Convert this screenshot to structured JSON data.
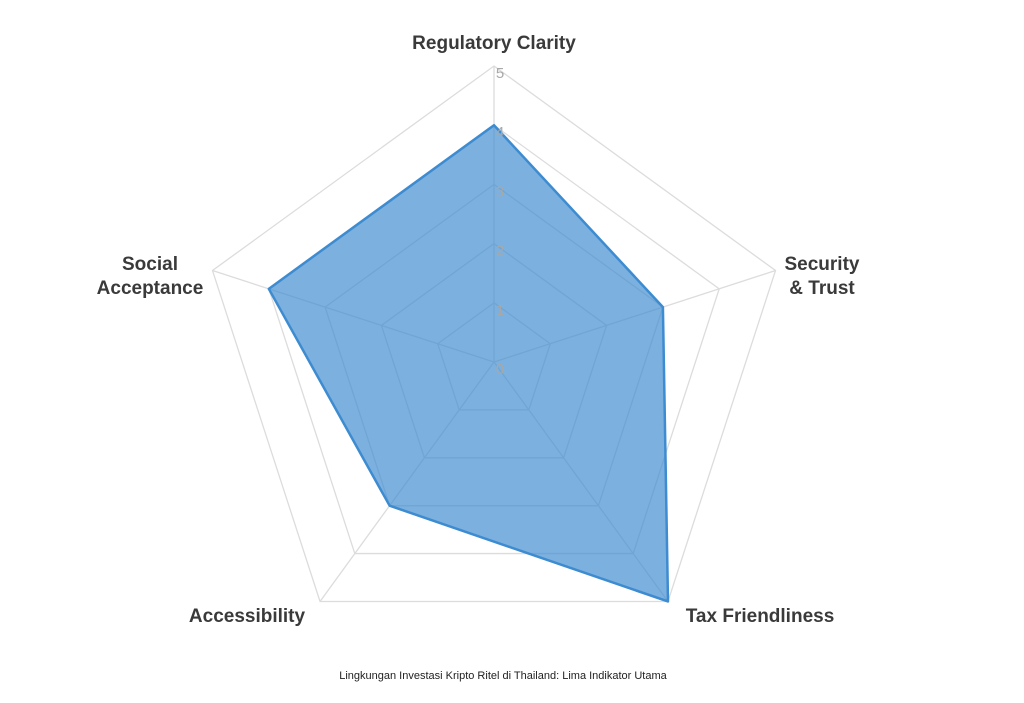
{
  "chart_data": {
    "type": "radar",
    "caption": "Lingkungan Investasi Kripto Ritel di Thailand: Lima Indikator Utama",
    "categories": [
      [
        "Regulatory Clarity"
      ],
      [
        "Security",
        "& Trust"
      ],
      [
        "Tax Friendliness"
      ],
      [
        "Accessibility"
      ],
      [
        "Social",
        "Acceptance"
      ]
    ],
    "values": [
      4,
      3,
      5,
      3,
      4
    ],
    "color": "#3d8bd0",
    "rlim": [
      0,
      5
    ],
    "rticks": [
      0,
      1,
      2,
      3,
      4,
      5
    ],
    "grid": true
  }
}
